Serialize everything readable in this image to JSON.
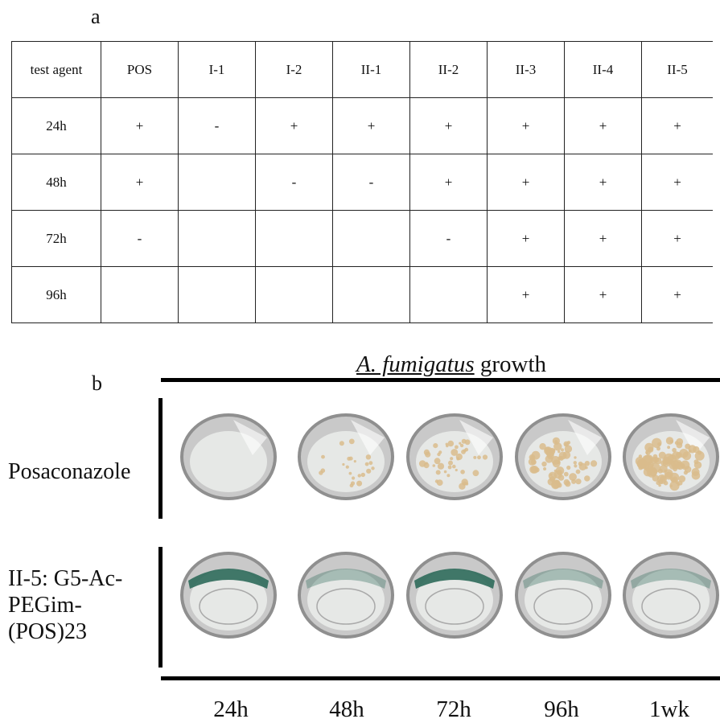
{
  "panel_a": {
    "label": "a",
    "header": [
      "test agent",
      "POS",
      "I-1",
      "I-2",
      "II-1",
      "II-2",
      "II-3",
      "II-4",
      "II-5"
    ],
    "rows": [
      [
        "24h",
        "+",
        "-",
        "+",
        "+",
        "+",
        "+",
        "+",
        "+"
      ],
      [
        "48h",
        "+",
        "",
        "-",
        "-",
        "+",
        "+",
        "+",
        "+"
      ],
      [
        "72h",
        "-",
        "",
        "",
        "",
        "-",
        "+",
        "+",
        "+"
      ],
      [
        "96h",
        "",
        "",
        "",
        "",
        "",
        "+",
        "+",
        "+"
      ]
    ]
  },
  "panel_b": {
    "label": "b",
    "title_italic": "A. fumigatus",
    "title_rest": " growth",
    "row_pos": "Posaconazole",
    "row_ii5_lines": [
      "II-5: G5-Ac-",
      "PEGim-",
      "(POS)23"
    ],
    "time_points": [
      "24h",
      "48h",
      "72h",
      "96h",
      "1wk"
    ]
  },
  "colors": {
    "well_rim": "#c9c9c9",
    "medium_clear": "#e6e8e6",
    "colony": "#d9bc8c",
    "dark_band": "#2e6a5a"
  }
}
